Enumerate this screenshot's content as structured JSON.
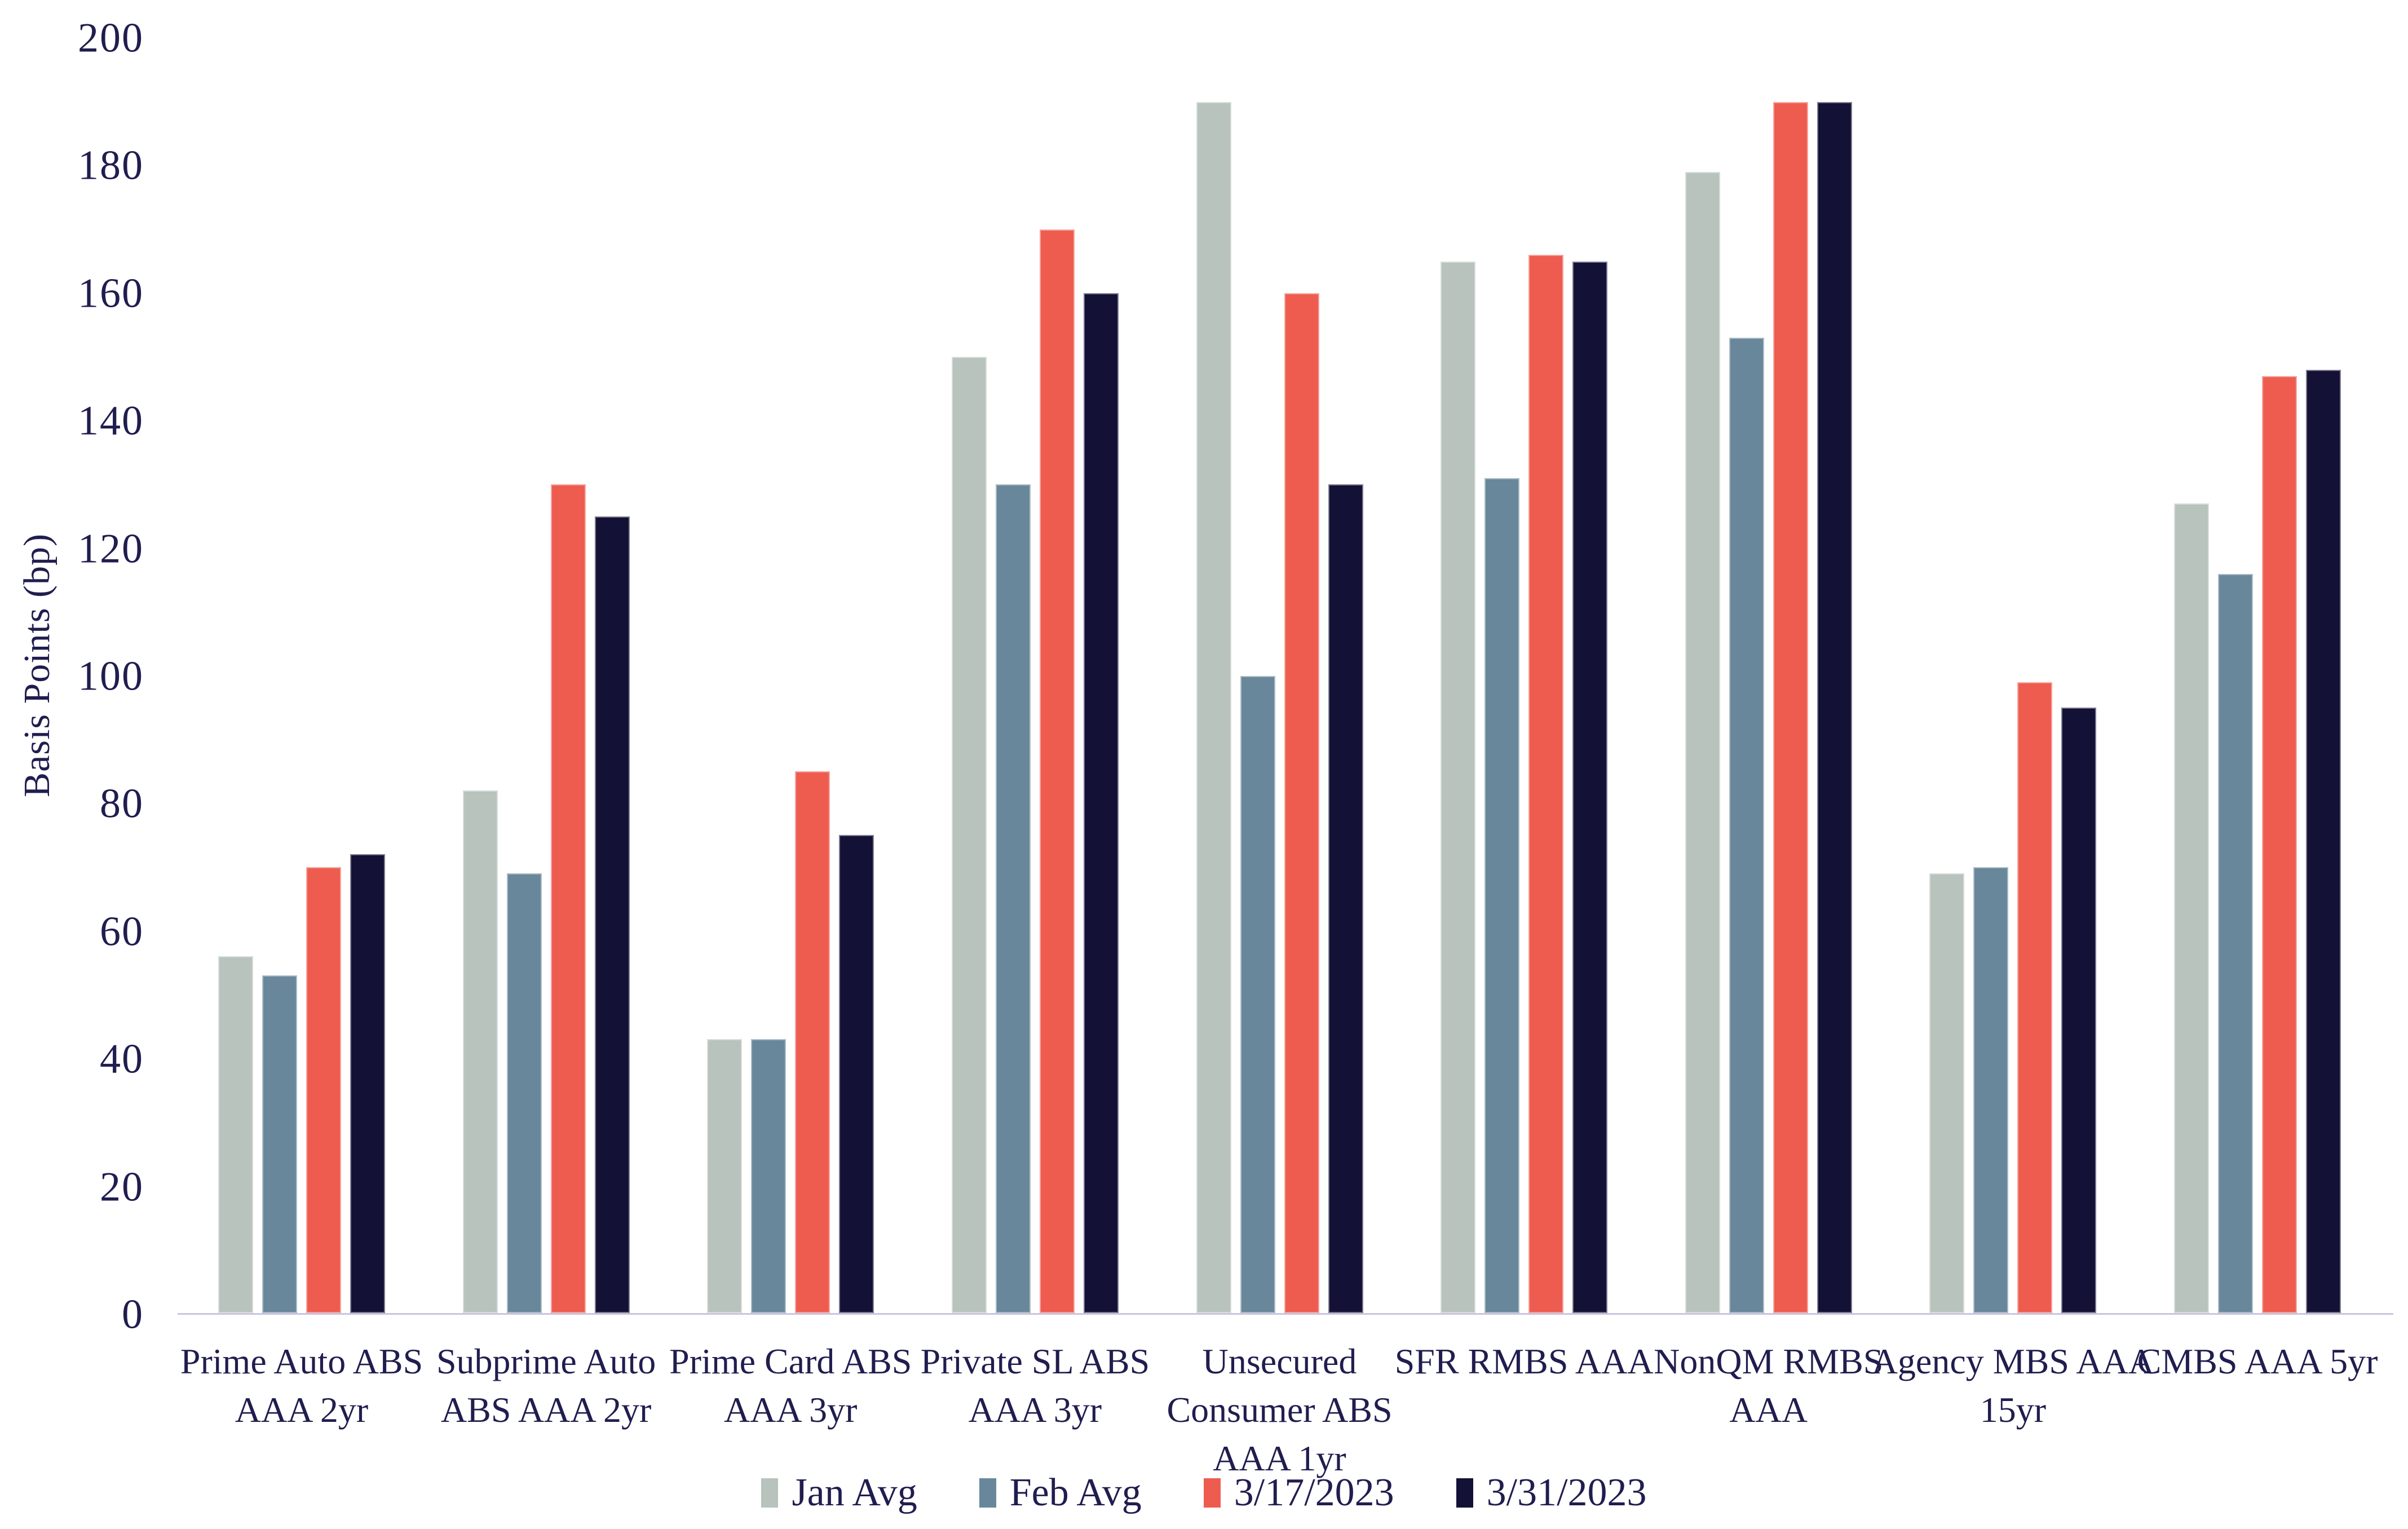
{
  "styles": {
    "background": "#ffffff",
    "text_color": "#201d4f",
    "axis_line_color": "#c9c5e1"
  },
  "chart_data": {
    "type": "bar",
    "title": "",
    "xlabel": "",
    "ylabel": "Basis Points (bp)",
    "ylim": [
      0,
      200
    ],
    "yticks": [
      0,
      20,
      40,
      60,
      80,
      100,
      120,
      140,
      160,
      180,
      200
    ],
    "grid": false,
    "legend_position": "bottom",
    "categories": [
      "Prime Auto ABS AAA 2yr",
      "Subprime Auto ABS AAA 2yr",
      "Prime Card ABS AAA 3yr",
      "Private SL ABS AAA 3yr",
      "Unsecured Consumer ABS AAA 1yr",
      "SFR RMBS AAA",
      "NonQM RMBS AAA",
      "Agency MBS AAA 15yr",
      "CMBS AAA 5yr"
    ],
    "category_lines": [
      [
        "Prime Auto ABS",
        "AAA 2yr"
      ],
      [
        "Subprime Auto",
        "ABS AAA 2yr"
      ],
      [
        "Prime Card ABS",
        "AAA 3yr"
      ],
      [
        "Private SL ABS",
        "AAA 3yr"
      ],
      [
        "Unsecured",
        "Consumer ABS",
        "AAA 1yr"
      ],
      [
        "SFR RMBS AAA"
      ],
      [
        "NonQM RMBS",
        "AAA"
      ],
      [
        "Agency MBS AAA",
        "15yr"
      ],
      [
        "CMBS AAA 5yr"
      ]
    ],
    "series": [
      {
        "name": "Jan Avg",
        "color": "#b7c3bc",
        "values": [
          56,
          82,
          43,
          150,
          190,
          165,
          179,
          69,
          127
        ]
      },
      {
        "name": "Feb Avg",
        "color": "#69879a",
        "values": [
          53,
          69,
          43,
          130,
          100,
          131,
          153,
          70,
          116
        ]
      },
      {
        "name": "3/17/2023",
        "color": "#ee5c4f",
        "values": [
          70,
          130,
          85,
          170,
          160,
          166,
          190,
          99,
          147
        ]
      },
      {
        "name": "3/31/2023",
        "color": "#141136",
        "values": [
          72,
          125,
          75,
          160,
          130,
          165,
          190,
          95,
          148
        ]
      }
    ]
  }
}
